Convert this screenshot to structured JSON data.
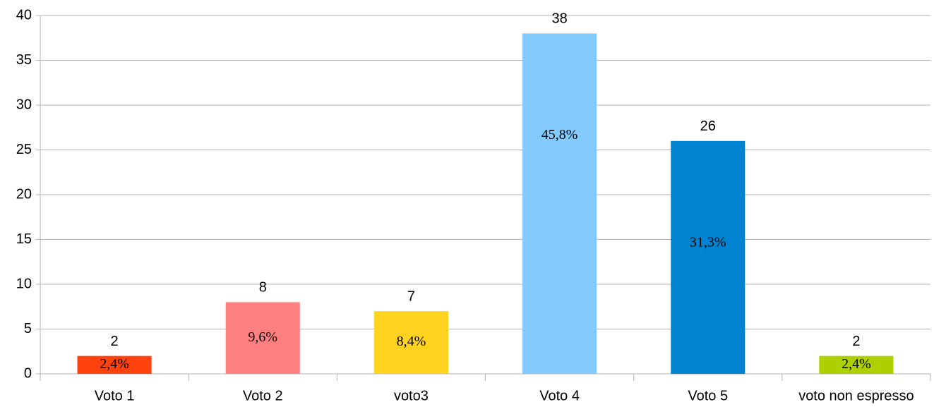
{
  "chart_data": {
    "type": "bar",
    "categories": [
      "Voto 1",
      "Voto 2",
      "voto3",
      "Voto 4",
      "Voto 5",
      "voto non espresso"
    ],
    "values": [
      2,
      8,
      7,
      38,
      26,
      2
    ],
    "percent_labels": [
      "2,4%",
      "9,6%",
      "8,4%",
      "45,8%",
      "31,3%",
      "2,4%"
    ],
    "colors": [
      "#ff420e",
      "#ff8080",
      "#ffd320",
      "#83caff",
      "#0084d1",
      "#aecf00"
    ],
    "ylim": [
      0,
      40
    ],
    "yticks": [
      0,
      5,
      10,
      15,
      20,
      25,
      30,
      35,
      40
    ],
    "grid": true
  }
}
